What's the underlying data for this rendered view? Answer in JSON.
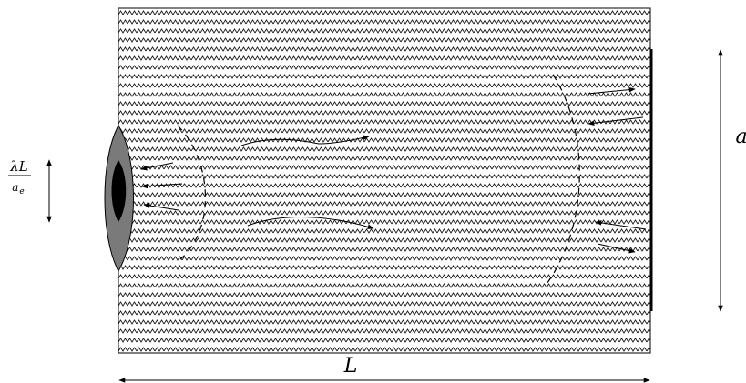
{
  "labels": {
    "length": "L",
    "height": "a",
    "source_numerator": "λL",
    "source_denominator_base": "a",
    "source_denominator_sub": "e"
  },
  "colors": {
    "ink": "#000000",
    "hatch": "#1a1a1a",
    "source_outer": "#7a7a7a",
    "source_inner": "#000000"
  }
}
